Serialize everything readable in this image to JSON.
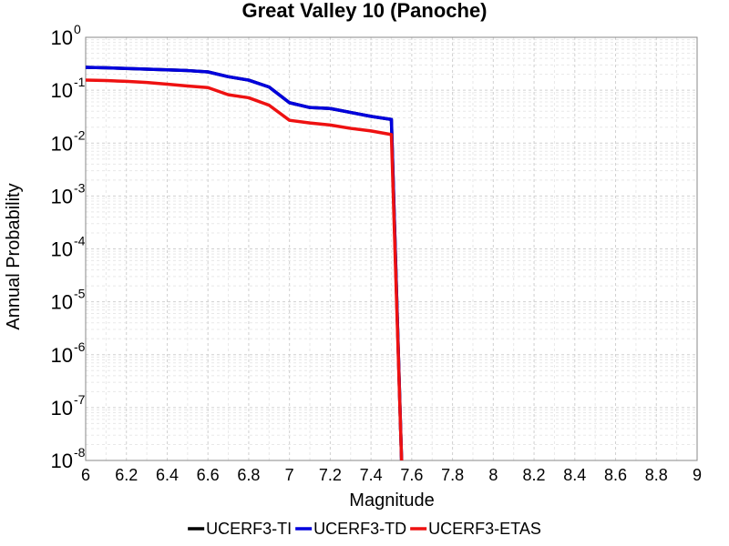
{
  "chart_data": {
    "type": "line",
    "title": "Great Valley 10 (Panoche)",
    "xlabel": "Magnitude",
    "ylabel": "Annual Probability",
    "x_scale": "linear",
    "y_scale": "log",
    "xlim": [
      6,
      9
    ],
    "ylim": [
      1e-08,
      1
    ],
    "grid": true,
    "legend_placement": "bottom",
    "x_ticks": [
      "6",
      "6.2",
      "6.4",
      "6.6",
      "6.8",
      "7",
      "7.2",
      "7.4",
      "7.6",
      "7.8",
      "8",
      "8.2",
      "8.4",
      "8.6",
      "8.8",
      "9"
    ],
    "y_ticks": [
      {
        "base": "10",
        "exp": "0"
      },
      {
        "base": "10",
        "exp": "-1"
      },
      {
        "base": "10",
        "exp": "-2"
      },
      {
        "base": "10",
        "exp": "-3"
      },
      {
        "base": "10",
        "exp": "-4"
      },
      {
        "base": "10",
        "exp": "-5"
      },
      {
        "base": "10",
        "exp": "-6"
      },
      {
        "base": "10",
        "exp": "-7"
      },
      {
        "base": "10",
        "exp": "-8"
      }
    ],
    "series": [
      {
        "name": "UCERF3-TI",
        "color": "#000000",
        "x": [
          6.0,
          6.1,
          6.2,
          6.3,
          6.4,
          6.5,
          6.6,
          6.7,
          6.8,
          6.9,
          7.0,
          7.1,
          7.2,
          7.3,
          7.4,
          7.5,
          7.55
        ],
        "y": [
          0.27,
          0.265,
          0.258,
          0.25,
          0.243,
          0.235,
          0.222,
          0.18,
          0.155,
          0.115,
          0.058,
          0.047,
          0.045,
          0.038,
          0.032,
          0.028,
          1e-08
        ]
      },
      {
        "name": "UCERF3-TD",
        "color": "#0000dd",
        "x": [
          6.0,
          6.1,
          6.2,
          6.3,
          6.4,
          6.5,
          6.6,
          6.7,
          6.8,
          6.9,
          7.0,
          7.1,
          7.2,
          7.3,
          7.4,
          7.5,
          7.55
        ],
        "y": [
          0.27,
          0.265,
          0.258,
          0.25,
          0.243,
          0.235,
          0.222,
          0.18,
          0.155,
          0.115,
          0.058,
          0.047,
          0.045,
          0.038,
          0.032,
          0.028,
          1e-08
        ]
      },
      {
        "name": "UCERF3-ETAS",
        "color": "#ee1111",
        "x": [
          6.0,
          6.1,
          6.2,
          6.3,
          6.4,
          6.5,
          6.6,
          6.7,
          6.8,
          6.9,
          7.0,
          7.1,
          7.2,
          7.3,
          7.4,
          7.5,
          7.55
        ],
        "y": [
          0.155,
          0.152,
          0.147,
          0.14,
          0.13,
          0.12,
          0.112,
          0.082,
          0.072,
          0.052,
          0.027,
          0.024,
          0.022,
          0.019,
          0.017,
          0.0145,
          1e-08
        ]
      }
    ]
  }
}
